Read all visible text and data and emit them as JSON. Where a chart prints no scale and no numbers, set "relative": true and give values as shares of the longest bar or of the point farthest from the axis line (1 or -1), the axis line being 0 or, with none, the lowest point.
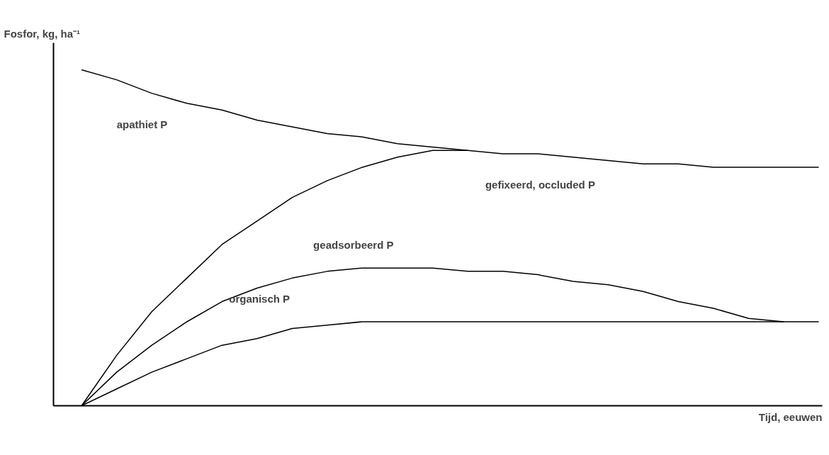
{
  "chart_data": {
    "type": "line",
    "relative": true,
    "xlabel": "Tijd, eeuwen",
    "ylabel": "Fosfor, kg, ha⁻¹",
    "categories": [
      null,
      null,
      null,
      null,
      null,
      null,
      null,
      null,
      null,
      null,
      null,
      null,
      null,
      null,
      null,
      null,
      null,
      null,
      null,
      null,
      null,
      null
    ],
    "series": [
      {
        "color": "#000000",
        "values": [
          1.0,
          0.97,
          0.93,
          0.9,
          0.88,
          0.85,
          0.83,
          0.81,
          0.8,
          0.78,
          0.77,
          0.76,
          0.75,
          0.75,
          0.74,
          0.73,
          0.72,
          0.72,
          0.71,
          0.71,
          0.71,
          0.71
        ]
      },
      {
        "color": "#000000",
        "values": [
          0,
          0.15,
          0.28,
          0.38,
          0.48,
          0.55,
          0.62,
          0.67,
          0.71,
          0.74,
          0.76,
          0.76,
          null,
          null,
          null,
          null,
          null,
          null,
          null,
          null,
          null,
          null
        ]
      },
      {
        "color": "#000000",
        "values": [
          0,
          0.1,
          0.18,
          0.25,
          0.31,
          0.35,
          0.38,
          0.4,
          0.41,
          0.41,
          0.41,
          0.4,
          0.4,
          0.39,
          0.37,
          0.36,
          0.34,
          0.31,
          0.29,
          0.26,
          0.25,
          null
        ]
      },
      {
        "color": "#000000",
        "values": [
          0,
          0.05,
          0.1,
          0.14,
          0.18,
          0.2,
          0.23,
          0.24,
          0.25,
          0.25,
          0.25,
          0.25,
          0.25,
          0.25,
          0.25,
          0.25,
          0.25,
          0.25,
          0.25,
          0.25,
          0.25,
          0.25
        ]
      }
    ],
    "annotations": [
      "apathiet P",
      "gefixeerd, occluded P",
      "geadsorbeerd P",
      "organisch P"
    ],
    "marker": "none",
    "line_style": "solid"
  }
}
